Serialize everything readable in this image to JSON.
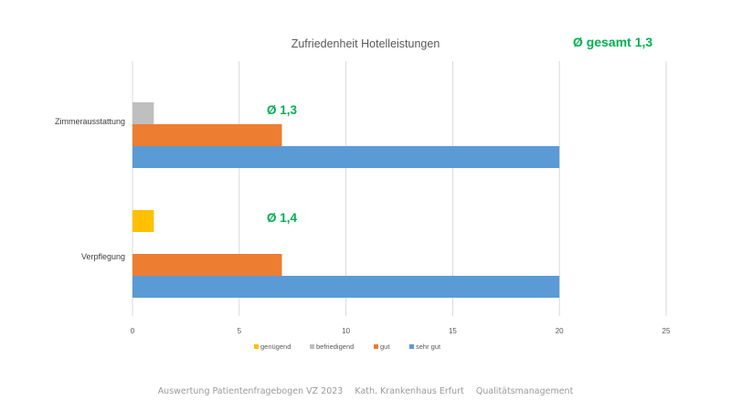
{
  "chart_data": {
    "type": "bar",
    "orientation": "horizontal",
    "title": "Zufriedenheit Hotelleistungen",
    "categories": [
      "Zimmerausstattung",
      "Verpflegung"
    ],
    "series": [
      {
        "name": "genügend",
        "color": "#ffc000",
        "values": [
          0,
          1
        ]
      },
      {
        "name": "befriedigend",
        "color": "#bfbfbf",
        "values": [
          1,
          0
        ]
      },
      {
        "name": "gut",
        "color": "#ed7d31",
        "values": [
          7,
          7
        ]
      },
      {
        "name": "sehr gut",
        "color": "#5b9bd5",
        "values": [
          20,
          20
        ]
      }
    ],
    "xlim": [
      0,
      25
    ],
    "xticks": [
      "0",
      "5",
      "10",
      "15",
      "20",
      "25"
    ],
    "grid": true,
    "legend_position": "bottom",
    "annotations": {
      "overall": "Ø gesamt 1,3",
      "category_averages": [
        "Ø 1,3",
        "Ø 1,4"
      ],
      "color": "#00b050"
    }
  },
  "footer": {
    "survey": "Auswertung Patientenfragebogen VZ 2023",
    "hospital": "Kath. Krankenhaus Erfurt",
    "department": "Qualitätsmanagement"
  }
}
